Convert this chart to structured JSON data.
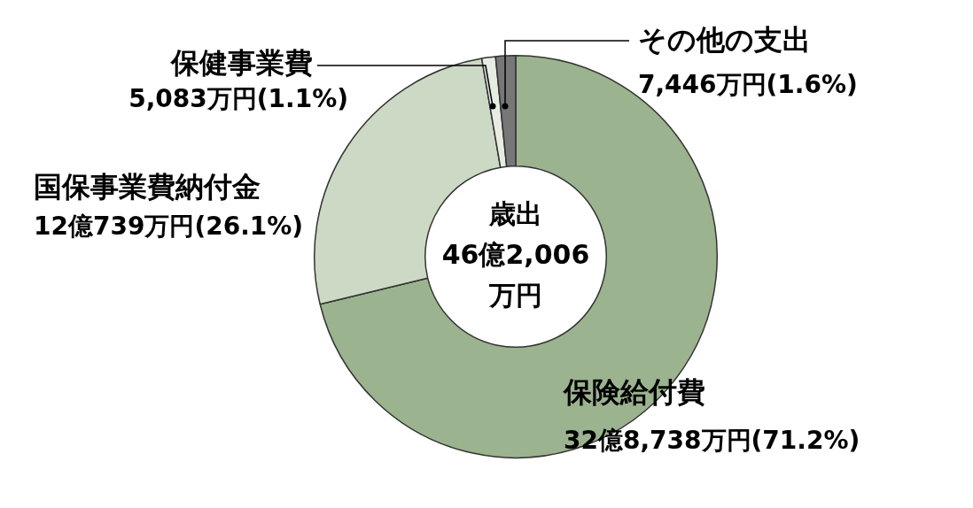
{
  "chart_data": {
    "type": "donut",
    "title": "歳出",
    "subtitle": "46億2,006万円",
    "categories": [
      "保険給付費",
      "国保事業費納付金",
      "保健事業費",
      "その他の支出"
    ],
    "values": [
      71.2,
      26.1,
      1.1,
      1.6
    ],
    "colors": [
      "#9bb38f",
      "#ccd9c4",
      "#e6ece2",
      "#777777"
    ],
    "value_labels": [
      "32億8,738万円(71.2%)",
      "12億739万円(26.1%)",
      "5,083万円(1.1%)",
      "7,446万円(1.6%)"
    ],
    "legend": false
  }
}
